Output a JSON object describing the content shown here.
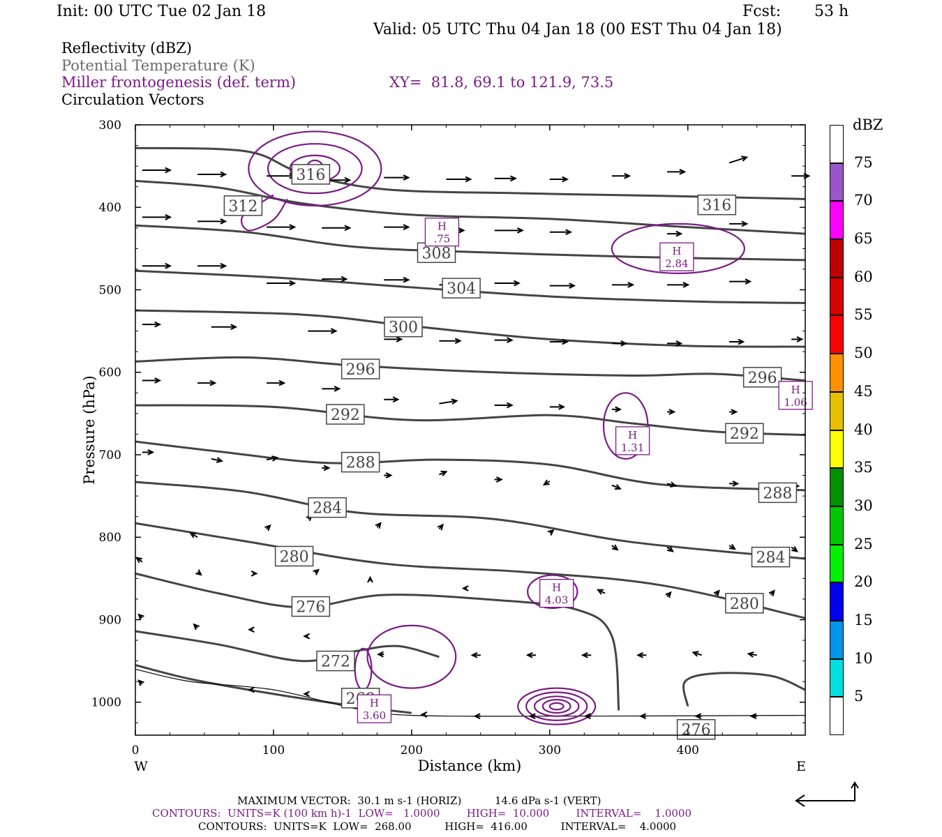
{
  "header": {
    "init": "Init: 00 UTC Tue 02 Jan 18",
    "fcst_label": "Fcst:",
    "fcst_value": "53 h",
    "valid": "Valid: 05 UTC Thu 04 Jan 18 (00 EST Thu 04 Jan 18)"
  },
  "legend": {
    "line1": "Reflectivity (dBZ)",
    "line2": "Potential Temperature (K)",
    "line3": "Miller frontogenesis (def. term)",
    "xy": "XY=  81.8, 69.1 to 121.9, 73.5",
    "line4": "Circulation Vectors"
  },
  "colorbar": {
    "unit": "dBZ",
    "levels": [
      "5",
      "10",
      "15",
      "20",
      "25",
      "30",
      "35",
      "40",
      "45",
      "50",
      "55",
      "60",
      "65",
      "70",
      "75"
    ],
    "colors": [
      "#ffffff",
      "#00e0e0",
      "#0095e8",
      "#0000f0",
      "#00f000",
      "#00c800",
      "#009000",
      "#ffff00",
      "#e6bf00",
      "#ff9000",
      "#ff0000",
      "#d60000",
      "#c00000",
      "#ff00ff",
      "#9955c9",
      "#ffffff"
    ]
  },
  "footer": {
    "max_vector": "MAXIMUM VECTOR:  30.1 m s-1 (HORIZ)          14.6 dPa s-1 (VERT)",
    "contours_purple": "CONTOURS:  UNITS=K (100 km h)-1  LOW=   1.0000        HIGH=  10.000        INTERVAL=    1.0000",
    "contours_black": "CONTOURS:  UNITS=K  LOW=  268.00          HIGH=  416.00          INTERVAL=    4.0000"
  },
  "chart_data": {
    "type": "cross-section",
    "xlabel": "Distance (km)",
    "ylabel": "Pressure (hPa)",
    "xlim": [
      0,
      485
    ],
    "ylim": [
      1040,
      300
    ],
    "x_ticks": [
      0,
      100,
      200,
      300,
      400
    ],
    "y_ticks": [
      300,
      400,
      500,
      600,
      700,
      800,
      900,
      1000
    ],
    "x_left_label": "W",
    "x_right_label": "E",
    "theta_labels": [
      {
        "text": "316",
        "x": 127,
        "p": 360
      },
      {
        "text": "312",
        "x": 78,
        "p": 398
      },
      {
        "text": "316",
        "x": 421,
        "p": 397
      },
      {
        "text": "308",
        "x": 218,
        "p": 455
      },
      {
        "text": "304",
        "x": 236,
        "p": 498
      },
      {
        "text": "300",
        "x": 194,
        "p": 545
      },
      {
        "text": "296",
        "x": 163,
        "p": 596
      },
      {
        "text": "296",
        "x": 454,
        "p": 606
      },
      {
        "text": "292",
        "x": 152,
        "p": 651
      },
      {
        "text": "292",
        "x": 441,
        "p": 674
      },
      {
        "text": "288",
        "x": 163,
        "p": 709
      },
      {
        "text": "288",
        "x": 465,
        "p": 746
      },
      {
        "text": "284",
        "x": 139,
        "p": 764
      },
      {
        "text": "284",
        "x": 460,
        "p": 824
      },
      {
        "text": "280",
        "x": 115,
        "p": 823
      },
      {
        "text": "280",
        "x": 441,
        "p": 880
      },
      {
        "text": "276",
        "x": 127,
        "p": 884
      },
      {
        "text": "272",
        "x": 145,
        "p": 950
      },
      {
        "text": "268",
        "x": 163,
        "p": 995
      },
      {
        "text": "276",
        "x": 406,
        "p": 1033
      }
    ],
    "theta_lines": [
      {
        "theta": 316,
        "pts": [
          [
            0,
            328
          ],
          [
            80,
            332
          ],
          [
            120,
            358
          ],
          [
            180,
            378
          ],
          [
            280,
            383
          ],
          [
            380,
            386
          ],
          [
            485,
            390
          ]
        ]
      },
      {
        "theta": 312,
        "pts": [
          [
            0,
            368
          ],
          [
            60,
            376
          ],
          [
            120,
            395
          ],
          [
            200,
            409
          ],
          [
            300,
            414
          ],
          [
            400,
            424
          ],
          [
            485,
            432
          ]
        ]
      },
      {
        "theta": 308,
        "pts": [
          [
            0,
            422
          ],
          [
            80,
            430
          ],
          [
            160,
            448
          ],
          [
            260,
            455
          ],
          [
            360,
            460
          ],
          [
            485,
            464
          ]
        ]
      },
      {
        "theta": 304,
        "pts": [
          [
            0,
            477
          ],
          [
            100,
            485
          ],
          [
            200,
            497
          ],
          [
            300,
            508
          ],
          [
            400,
            514
          ],
          [
            485,
            516
          ]
        ]
      },
      {
        "theta": 300,
        "pts": [
          [
            0,
            525
          ],
          [
            120,
            530
          ],
          [
            200,
            544
          ],
          [
            300,
            560
          ],
          [
            400,
            568
          ],
          [
            485,
            569
          ]
        ]
      },
      {
        "theta": 296,
        "pts": [
          [
            0,
            587
          ],
          [
            80,
            582
          ],
          [
            160,
            592
          ],
          [
            260,
            600
          ],
          [
            360,
            604
          ],
          [
            420,
            602
          ],
          [
            485,
            610
          ]
        ]
      },
      {
        "theta": 292,
        "pts": [
          [
            0,
            640
          ],
          [
            100,
            642
          ],
          [
            200,
            658
          ],
          [
            300,
            652
          ],
          [
            360,
            662
          ],
          [
            420,
            672
          ],
          [
            485,
            676
          ]
        ]
      },
      {
        "theta": 288,
        "pts": [
          [
            0,
            684
          ],
          [
            60,
            696
          ],
          [
            140,
            710
          ],
          [
            220,
            706
          ],
          [
            300,
            712
          ],
          [
            380,
            736
          ],
          [
            485,
            743
          ]
        ]
      },
      {
        "theta": 284,
        "pts": [
          [
            0,
            733
          ],
          [
            80,
            745
          ],
          [
            160,
            770
          ],
          [
            260,
            778
          ],
          [
            360,
            806
          ],
          [
            485,
            826
          ]
        ]
      },
      {
        "theta": 280,
        "pts": [
          [
            0,
            783
          ],
          [
            80,
            805
          ],
          [
            180,
            832
          ],
          [
            280,
            842
          ],
          [
            380,
            858
          ],
          [
            485,
            898
          ]
        ]
      },
      {
        "theta": 276,
        "pts": [
          [
            0,
            844
          ],
          [
            60,
            868
          ],
          [
            120,
            885
          ],
          [
            180,
            870
          ],
          [
            260,
            876
          ],
          [
            320,
            888
          ],
          [
            345,
            920
          ],
          [
            350,
            1010
          ]
        ]
      },
      {
        "theta": 276,
        "pts": [
          [
            400,
            1005
          ],
          [
            398,
            975
          ],
          [
            420,
            965
          ],
          [
            460,
            968
          ],
          [
            485,
            985
          ]
        ]
      },
      {
        "theta": 272,
        "pts": [
          [
            0,
            914
          ],
          [
            60,
            930
          ],
          [
            120,
            950
          ],
          [
            160,
            938
          ],
          [
            190,
            932
          ],
          [
            220,
            945
          ]
        ]
      },
      {
        "theta": 268,
        "pts": [
          [
            0,
            955
          ],
          [
            40,
            972
          ],
          [
            100,
            990
          ],
          [
            160,
            1005
          ],
          [
            200,
            1013
          ]
        ]
      }
    ],
    "miller_max_labels": [
      {
        "label": "H",
        "value": ".75",
        "x": 222,
        "p": 430
      },
      {
        "label": "H",
        "value": "2.84",
        "x": 392,
        "p": 460
      },
      {
        "label": "H",
        "value": "1.31",
        "x": 360,
        "p": 683
      },
      {
        "label": "H",
        "value": "1.06",
        "x": 478,
        "p": 628
      },
      {
        "label": "H",
        "value": "4.03",
        "x": 305,
        "p": 868
      },
      {
        "label": "H",
        "value": "3.60",
        "x": 173,
        "p": 1008
      }
    ],
    "vectors": [
      [
        5,
        355,
        40,
        0
      ],
      [
        45,
        360,
        40,
        0
      ],
      [
        95,
        362,
        40,
        0
      ],
      [
        135,
        367,
        40,
        0
      ],
      [
        180,
        364,
        35,
        0
      ],
      [
        225,
        366,
        35,
        0
      ],
      [
        260,
        365,
        30,
        0
      ],
      [
        300,
        366,
        25,
        0
      ],
      [
        345,
        362,
        25,
        0
      ],
      [
        385,
        357,
        25,
        0
      ],
      [
        430,
        346,
        25,
        -8
      ],
      [
        475,
        362,
        25,
        0
      ],
      [
        5,
        412,
        40,
        0
      ],
      [
        45,
        417,
        40,
        0
      ],
      [
        95,
        424,
        40,
        0
      ],
      [
        135,
        425,
        40,
        0
      ],
      [
        180,
        424,
        35,
        0
      ],
      [
        220,
        428,
        35,
        0
      ],
      [
        260,
        428,
        40,
        0
      ],
      [
        300,
        430,
        30,
        0
      ],
      [
        385,
        432,
        20,
        0
      ],
      [
        430,
        420,
        25,
        0
      ],
      [
        5,
        471,
        40,
        0
      ],
      [
        45,
        471,
        40,
        0
      ],
      [
        95,
        492,
        40,
        0
      ],
      [
        135,
        487,
        35,
        0
      ],
      [
        180,
        488,
        35,
        0
      ],
      [
        220,
        494,
        40,
        0
      ],
      [
        260,
        492,
        35,
        0
      ],
      [
        300,
        495,
        35,
        0
      ],
      [
        345,
        494,
        30,
        0
      ],
      [
        385,
        494,
        30,
        0
      ],
      [
        430,
        490,
        30,
        0
      ],
      [
        5,
        542,
        25,
        0
      ],
      [
        55,
        545,
        35,
        0
      ],
      [
        125,
        550,
        40,
        0
      ],
      [
        180,
        560,
        25,
        0
      ],
      [
        220,
        562,
        30,
        0
      ],
      [
        260,
        561,
        25,
        0
      ],
      [
        300,
        563,
        25,
        0
      ],
      [
        345,
        565,
        20,
        0
      ],
      [
        385,
        565,
        20,
        0
      ],
      [
        430,
        563,
        20,
        0
      ],
      [
        475,
        560,
        15,
        0
      ],
      [
        5,
        610,
        25,
        0
      ],
      [
        45,
        613,
        25,
        0
      ],
      [
        95,
        613,
        25,
        0
      ],
      [
        135,
        620,
        25,
        0
      ],
      [
        180,
        633,
        20,
        0
      ],
      [
        220,
        638,
        25,
        -4
      ],
      [
        260,
        640,
        25,
        0
      ],
      [
        300,
        642,
        20,
        0
      ],
      [
        345,
        645,
        12,
        0
      ],
      [
        385,
        648,
        10,
        0
      ],
      [
        430,
        648,
        10,
        0
      ],
      [
        5,
        697,
        15,
        0
      ],
      [
        55,
        705,
        15,
        3
      ],
      [
        95,
        706,
        15,
        -3
      ],
      [
        135,
        716,
        10,
        0
      ],
      [
        180,
        725,
        10,
        0
      ],
      [
        220,
        724,
        10,
        -4
      ],
      [
        260,
        730,
        10,
        0
      ],
      [
        300,
        732,
        -8,
        5
      ],
      [
        345,
        737,
        12,
        5
      ],
      [
        385,
        735,
        12,
        3
      ],
      [
        430,
        735,
        12,
        0
      ],
      [
        475,
        738,
        10,
        0
      ],
      [
        45,
        800,
        -10,
        -6
      ],
      [
        95,
        790,
        5,
        -5
      ],
      [
        125,
        778,
        5,
        -5
      ],
      [
        175,
        788,
        5,
        -6
      ],
      [
        220,
        790,
        5,
        -6
      ],
      [
        300,
        795,
        5,
        -4
      ],
      [
        345,
        810,
        8,
        6
      ],
      [
        385,
        812,
        8,
        6
      ],
      [
        430,
        810,
        8,
        5
      ],
      [
        475,
        812,
        8,
        6
      ],
      [
        5,
        830,
        -8,
        -6
      ],
      [
        45,
        842,
        5,
        4
      ],
      [
        85,
        844,
        5,
        0
      ],
      [
        130,
        843,
        5,
        -4
      ],
      [
        170,
        853,
        0,
        -5
      ],
      [
        240,
        862,
        -5,
        0
      ],
      [
        340,
        868,
        -10,
        -5
      ],
      [
        385,
        872,
        5,
        -6
      ],
      [
        420,
        870,
        5,
        -6
      ],
      [
        460,
        870,
        5,
        -6
      ],
      [
        5,
        898,
        -5,
        -5
      ],
      [
        45,
        910,
        -5,
        -5
      ],
      [
        85,
        912,
        -5,
        0
      ],
      [
        125,
        920,
        -5,
        0
      ],
      [
        180,
        942,
        -8,
        0
      ],
      [
        250,
        943,
        -12,
        0
      ],
      [
        290,
        943,
        -12,
        0
      ],
      [
        330,
        943,
        -12,
        0
      ],
      [
        370,
        943,
        -12,
        0
      ],
      [
        410,
        943,
        -12,
        -4
      ],
      [
        450,
        943,
        -12,
        -2
      ],
      [
        5,
        978,
        -5,
        -5
      ],
      [
        85,
        985,
        -5,
        0
      ],
      [
        125,
        990,
        -5,
        0
      ],
      [
        165,
        1012,
        -5,
        0
      ],
      [
        210,
        1015,
        -5,
        0
      ],
      [
        250,
        1017,
        -8,
        0
      ],
      [
        290,
        1017,
        -8,
        0
      ],
      [
        330,
        1017,
        -8,
        0
      ],
      [
        370,
        1017,
        -8,
        0
      ],
      [
        410,
        1017,
        -8,
        0
      ],
      [
        450,
        1017,
        -8,
        0
      ]
    ]
  }
}
